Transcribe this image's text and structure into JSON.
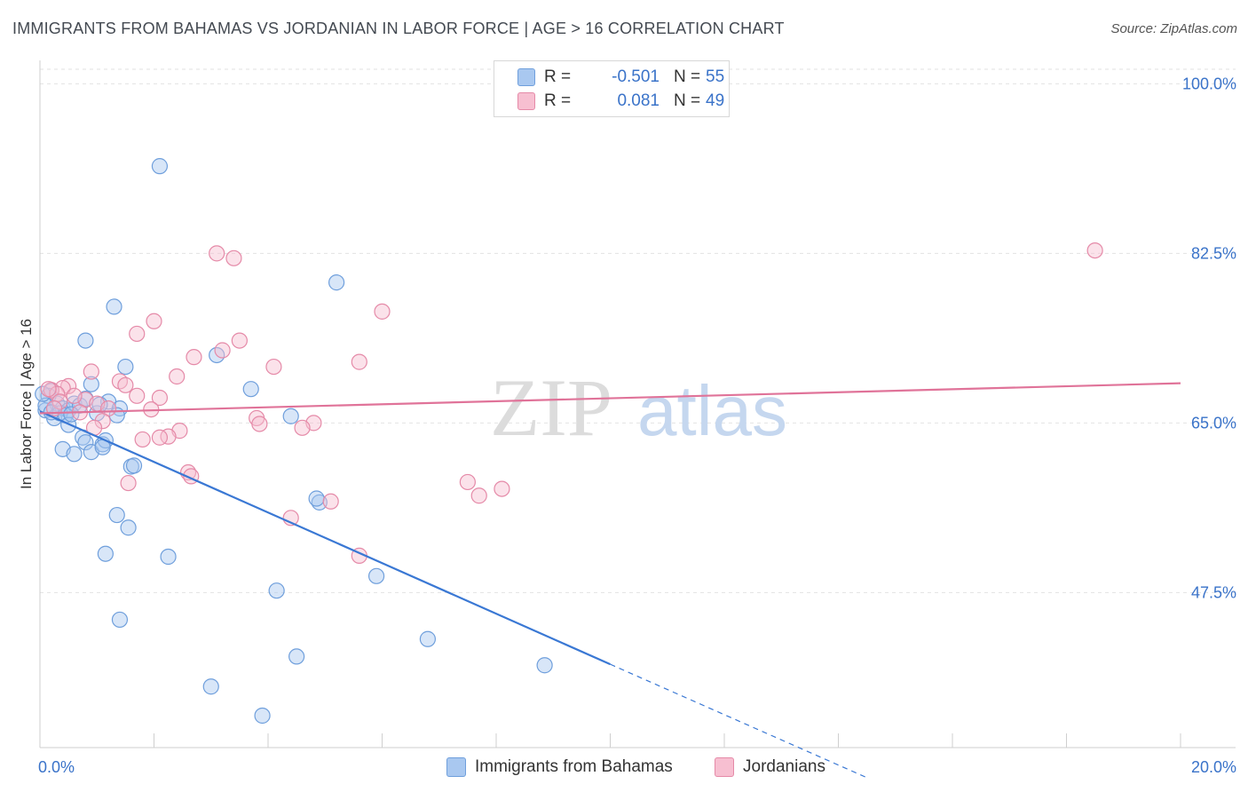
{
  "title": "IMMIGRANTS FROM BAHAMAS VS JORDANIAN IN LABOR FORCE | AGE > 16 CORRELATION CHART",
  "source": "Source: ZipAtlas.com",
  "watermark": {
    "zip": "ZIP",
    "atlas": "atlas"
  },
  "legend": {
    "rows": [
      {
        "r_label": "R =",
        "r_value": "-0.501",
        "n_label": "N =",
        "n_value": "55",
        "color": "#a9c8f0",
        "stroke": "#6f9fdc"
      },
      {
        "r_label": "R =",
        "r_value": "0.081",
        "n_label": "N =",
        "n_value": "49",
        "color": "#f7bfd1",
        "stroke": "#e58aa8"
      }
    ]
  },
  "bottom_legend": [
    {
      "label": "Immigrants from Bahamas",
      "color": "#a9c8f0",
      "stroke": "#6f9fdc"
    },
    {
      "label": "Jordanians",
      "color": "#f7bfd1",
      "stroke": "#e58aa8"
    }
  ],
  "chart_data": {
    "type": "scatter",
    "ylabel": "In Labor Force | Age > 16",
    "xlim": [
      0,
      20
    ],
    "ylim": [
      31.5,
      101.5
    ],
    "x_tick_labels": [
      {
        "value": 0,
        "label": "0.0%"
      },
      {
        "value": 20,
        "label": "20.0%"
      }
    ],
    "y_tick_labels": [
      {
        "value": 47.5,
        "label": "47.5%"
      },
      {
        "value": 65.0,
        "label": "65.0%"
      },
      {
        "value": 82.5,
        "label": "82.5%"
      },
      {
        "value": 100.0,
        "label": "100.0%"
      }
    ],
    "grid": true,
    "colors": {
      "blue": "#3a78d4",
      "pink": "#e07399",
      "axis_label": "#3a73c9"
    },
    "series": [
      {
        "name": "Immigrants from Bahamas",
        "color": "#a9c8f0",
        "stroke": "#6f9fdc",
        "points": [
          [
            2.1,
            91.5
          ],
          [
            5.2,
            79.5
          ],
          [
            1.3,
            77.0
          ],
          [
            0.8,
            73.5
          ],
          [
            3.1,
            72.0
          ],
          [
            1.5,
            70.8
          ],
          [
            3.7,
            68.5
          ],
          [
            0.9,
            69.0
          ],
          [
            0.1,
            66.3
          ],
          [
            0.2,
            68.3
          ],
          [
            0.3,
            67.0
          ],
          [
            0.4,
            66.5
          ],
          [
            0.5,
            66.3
          ],
          [
            0.6,
            67.0
          ],
          [
            0.7,
            66.8
          ],
          [
            0.8,
            67.5
          ],
          [
            0.15,
            67.8
          ],
          [
            0.25,
            65.5
          ],
          [
            0.35,
            66.0
          ],
          [
            0.45,
            65.8
          ],
          [
            1.0,
            66.0
          ],
          [
            1.2,
            67.2
          ],
          [
            1.4,
            66.5
          ],
          [
            1.35,
            65.8
          ],
          [
            0.5,
            64.8
          ],
          [
            0.75,
            63.5
          ],
          [
            0.8,
            63.0
          ],
          [
            0.9,
            62.0
          ],
          [
            1.1,
            62.8
          ],
          [
            1.15,
            63.2
          ],
          [
            1.1,
            62.5
          ],
          [
            0.4,
            62.3
          ],
          [
            0.6,
            61.8
          ],
          [
            1.6,
            60.5
          ],
          [
            1.65,
            60.6
          ],
          [
            4.4,
            65.7
          ],
          [
            4.9,
            56.8
          ],
          [
            4.85,
            57.2
          ],
          [
            1.35,
            55.5
          ],
          [
            1.55,
            54.2
          ],
          [
            1.15,
            51.5
          ],
          [
            2.25,
            51.2
          ],
          [
            5.9,
            49.2
          ],
          [
            4.15,
            47.7
          ],
          [
            1.4,
            44.7
          ],
          [
            6.8,
            42.7
          ],
          [
            4.5,
            40.9
          ],
          [
            8.85,
            40.0
          ],
          [
            3.0,
            37.8
          ],
          [
            3.9,
            34.8
          ],
          [
            0.1,
            66.8
          ],
          [
            0.05,
            68.0
          ],
          [
            1.05,
            66.9
          ],
          [
            0.2,
            66.1
          ],
          [
            0.55,
            65.9
          ]
        ],
        "trend": {
          "x0": 0,
          "y0": 66.2,
          "x1": 10,
          "y1": 40.1,
          "dash_to_x": 14.5,
          "dash_to_y": 28.4
        }
      },
      {
        "name": "Jordanians",
        "color": "#f7bfd1",
        "stroke": "#e58aa8",
        "points": [
          [
            18.5,
            82.8
          ],
          [
            3.1,
            82.5
          ],
          [
            3.4,
            82.0
          ],
          [
            6.0,
            76.5
          ],
          [
            2.0,
            75.5
          ],
          [
            1.7,
            74.2
          ],
          [
            3.5,
            73.5
          ],
          [
            3.2,
            72.5
          ],
          [
            2.7,
            71.8
          ],
          [
            5.6,
            71.3
          ],
          [
            4.1,
            70.8
          ],
          [
            0.9,
            70.3
          ],
          [
            2.4,
            69.8
          ],
          [
            1.4,
            69.3
          ],
          [
            1.5,
            68.9
          ],
          [
            1.7,
            67.8
          ],
          [
            2.1,
            67.6
          ],
          [
            0.5,
            68.8
          ],
          [
            0.8,
            67.4
          ],
          [
            0.4,
            68.6
          ],
          [
            0.2,
            68.4
          ],
          [
            0.3,
            68.0
          ],
          [
            0.6,
            67.8
          ],
          [
            0.35,
            67.2
          ],
          [
            1.0,
            67.0
          ],
          [
            1.2,
            66.5
          ],
          [
            0.15,
            68.5
          ],
          [
            1.95,
            66.4
          ],
          [
            3.8,
            65.5
          ],
          [
            3.85,
            64.9
          ],
          [
            4.8,
            65.0
          ],
          [
            4.6,
            64.5
          ],
          [
            2.45,
            64.2
          ],
          [
            2.25,
            63.6
          ],
          [
            2.1,
            63.5
          ],
          [
            1.8,
            63.3
          ],
          [
            1.1,
            65.2
          ],
          [
            0.95,
            64.5
          ],
          [
            2.6,
            59.9
          ],
          [
            2.65,
            59.5
          ],
          [
            1.55,
            58.8
          ],
          [
            7.5,
            58.9
          ],
          [
            8.1,
            58.2
          ],
          [
            7.7,
            57.5
          ],
          [
            5.1,
            56.9
          ],
          [
            4.4,
            55.2
          ],
          [
            5.6,
            51.3
          ],
          [
            0.7,
            66.1
          ],
          [
            0.25,
            66.5
          ]
        ],
        "trend": {
          "x0": 0,
          "y0": 66.0,
          "x1": 20,
          "y1": 69.1
        }
      }
    ]
  }
}
